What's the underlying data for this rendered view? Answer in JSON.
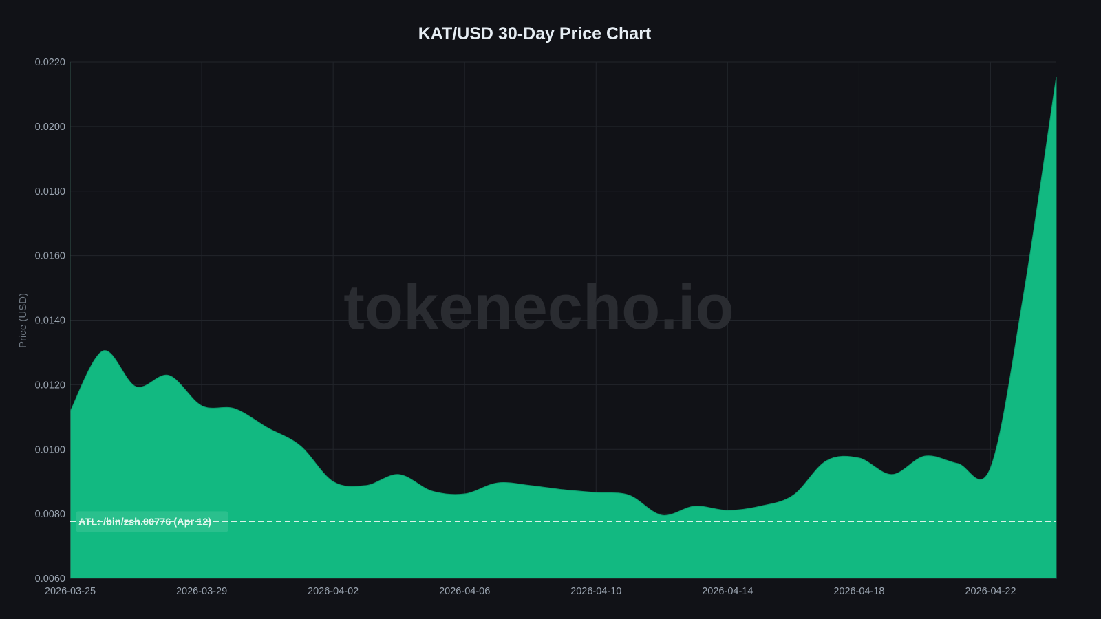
{
  "chart_data": {
    "type": "area",
    "title": "KAT/USD 30-Day Price Chart",
    "xlabel": "",
    "ylabel": "Price (USD)",
    "ylim": [
      0.006,
      0.022
    ],
    "grid": true,
    "legend": "none",
    "watermark": "tokenecho.io",
    "yticks": [
      "0.0060",
      "0.0080",
      "0.0100",
      "0.0120",
      "0.0140",
      "0.0160",
      "0.0180",
      "0.0200",
      "0.0220"
    ],
    "xticks": [
      "2026-03-25",
      "2026-03-29",
      "2026-04-02",
      "2026-04-06",
      "2026-04-10",
      "2026-04-14",
      "2026-04-18",
      "2026-04-22"
    ],
    "x": [
      "2026-03-25",
      "2026-03-26",
      "2026-03-27",
      "2026-03-28",
      "2026-03-29",
      "2026-03-30",
      "2026-03-31",
      "2026-04-01",
      "2026-04-02",
      "2026-04-03",
      "2026-04-04",
      "2026-04-05",
      "2026-04-06",
      "2026-04-07",
      "2026-04-08",
      "2026-04-09",
      "2026-04-10",
      "2026-04-11",
      "2026-04-12",
      "2026-04-13",
      "2026-04-14",
      "2026-04-15",
      "2026-04-16",
      "2026-04-17",
      "2026-04-18",
      "2026-04-19",
      "2026-04-20",
      "2026-04-21",
      "2026-04-22",
      "2026-04-23",
      "2026-04-24"
    ],
    "series": [
      {
        "name": "KAT/USD",
        "color": "#12b981",
        "values": [
          0.01118,
          0.01305,
          0.01194,
          0.01229,
          0.01135,
          0.01126,
          0.01067,
          0.01011,
          0.009,
          0.00888,
          0.00922,
          0.00871,
          0.00862,
          0.00896,
          0.00888,
          0.00875,
          0.00866,
          0.00858,
          0.00796,
          0.00824,
          0.00811,
          0.00824,
          0.00858,
          0.00964,
          0.00973,
          0.00922,
          0.00979,
          0.00956,
          0.00943,
          0.01476,
          0.02153
        ]
      }
    ],
    "annotations": [
      {
        "type": "hline",
        "y": 0.00776,
        "style": "dashed",
        "label": "ATL: /bin/zsh.00776 (Apr 12)"
      }
    ]
  },
  "colors": {
    "background": "#111217",
    "area_fill": "#12b981",
    "grid": "#22252b",
    "title": "#e6edf3",
    "tick": "#9aa4b0",
    "watermark": "#2a2c31"
  }
}
